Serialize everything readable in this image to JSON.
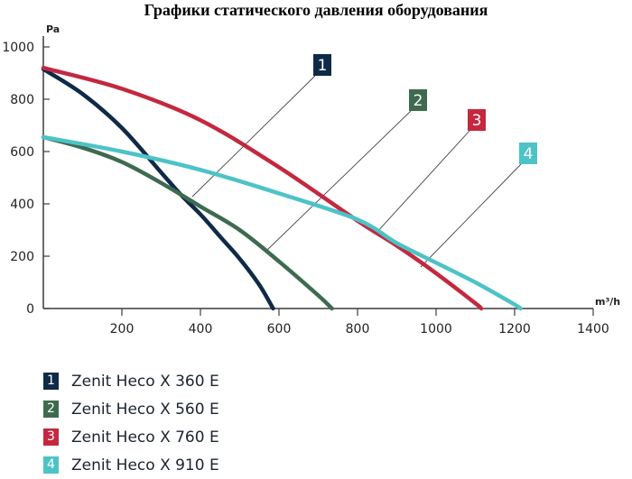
{
  "chart_data": {
    "type": "line",
    "title": "Графики статического давления оборудования",
    "ylabel": "Pa",
    "xlabel": "m³/h",
    "xlim": [
      0,
      1400
    ],
    "ylim": [
      0,
      1000
    ],
    "x_ticks": [
      "200",
      "400",
      "600",
      "800",
      "1000",
      "1200",
      "1400"
    ],
    "y_ticks": [
      "0",
      "200",
      "400",
      "600",
      "800",
      "1000"
    ],
    "grid": false,
    "series": [
      {
        "name": "Zenit Heco X 360 E",
        "badge": "1",
        "color": "#0f2a47",
        "x": [
          0,
          100,
          200,
          300,
          350,
          400,
          450,
          500,
          550,
          585
        ],
        "y": [
          915,
          820,
          690,
          520,
          435,
          360,
          275,
          190,
          90,
          0
        ]
      },
      {
        "name": "Zenit Heco X 560 E",
        "badge": "2",
        "color": "#3e6b50",
        "x": [
          0,
          100,
          200,
          300,
          400,
          500,
          600,
          700,
          735
        ],
        "y": [
          655,
          615,
          560,
          480,
          390,
          300,
          180,
          50,
          0
        ]
      },
      {
        "name": "Zenit Heco X 760 E",
        "badge": "3",
        "color": "#c3283f",
        "x": [
          0,
          200,
          400,
          600,
          800,
          900,
          1000,
          1100,
          1115
        ],
        "y": [
          920,
          840,
          720,
          540,
          335,
          240,
          135,
          20,
          0
        ]
      },
      {
        "name": "Zenit Heco X 910 E",
        "badge": "4",
        "color": "#4cc3c7",
        "x": [
          0,
          200,
          400,
          600,
          800,
          900,
          1000,
          1100,
          1200,
          1215
        ],
        "y": [
          655,
          600,
          530,
          440,
          340,
          250,
          175,
          100,
          15,
          0
        ]
      }
    ]
  }
}
